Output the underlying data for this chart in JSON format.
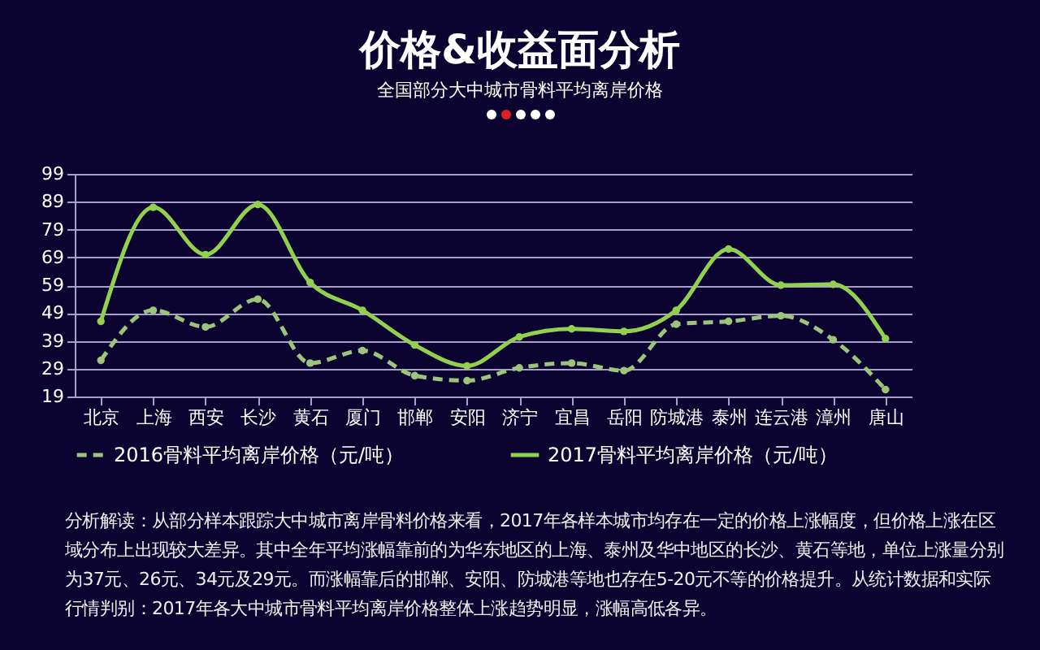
{
  "chart_data": {
    "type": "line",
    "title": "价格&收益面分析",
    "subtitle": "全国部分大中城市骨料平均离岸价格",
    "categories": [
      "北京",
      "上海",
      "西安",
      "长沙",
      "黄石",
      "厦门",
      "邯郸",
      "安阳",
      "济宁",
      "宜昌",
      "岳阳",
      "防城港",
      "泰州",
      "连云港",
      "漳州",
      "唐山"
    ],
    "series": [
      {
        "name": "2016骨料平均离岸价格（元/吨）",
        "color": "#9cc47a",
        "line_style": "dashed",
        "values": [
          32,
          50,
          44,
          54,
          31,
          35.5,
          26.5,
          24.7,
          29.3,
          31,
          28.3,
          45,
          46,
          48,
          39.4,
          21.5
        ]
      },
      {
        "name": "2017骨料平均离岸价格（元/吨）",
        "color": "#92d050",
        "line_style": "solid",
        "values": [
          46,
          87,
          70,
          88,
          60,
          50,
          37.5,
          30,
          40.4,
          43.3,
          42.4,
          50,
          72,
          59,
          59.3,
          39.8
        ]
      }
    ],
    "ylim": [
      19,
      99
    ],
    "yticks": [
      19,
      29,
      39,
      49,
      59,
      69,
      79,
      89,
      99
    ],
    "grid": "y",
    "legend": "bottom",
    "marker": "circle",
    "annotations": [
      "分析解读：从部分样本跟踪大中城市离岸骨料价格来看，2017年各样本城市均存在一定的价格上涨幅度，但价格上涨在区域分布上出现较大差异。其中全年平均涨幅靠前的为华东地区的上海、泰州及华中地区的长沙、黄石等地，单位上涨量分别为37元、26元、34元及29元。而涨幅靠后的邯郸、安阳、防城港等地也存在5-20元不等的价格提升。从统计数据和实际行情判别：2017年各大中城市骨料平均离岸价格整体上涨趋势明显，涨幅高低各异。"
    ]
  }
}
